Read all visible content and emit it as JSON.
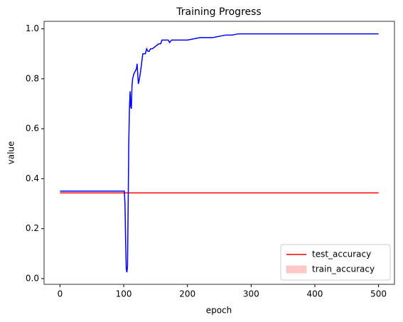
{
  "chart_data": {
    "type": "line",
    "title": "Training Progress",
    "xlabel": "epoch",
    "ylabel": "value",
    "xlim": [
      -25,
      525
    ],
    "xticks": [
      0,
      100,
      200,
      300,
      400,
      500
    ],
    "ylim": [
      -0.023,
      1.03
    ],
    "yticks": [
      {
        "value": 0,
        "label": "0.0"
      },
      {
        "value": 0.2,
        "label": "0.2"
      },
      {
        "value": 0.4,
        "label": "0.4"
      },
      {
        "value": 0.6,
        "label": "0.6"
      },
      {
        "value": 0.8,
        "label": "0.8"
      },
      {
        "value": 1,
        "label": "1.0"
      }
    ],
    "grid": false,
    "legend_loc": "lower right",
    "series": [
      {
        "color": "#ff0000",
        "x": [
          0,
          500
        ],
        "values": [
          0.343,
          0.343
        ]
      },
      {
        "color": "#0000ff",
        "x": [
          0,
          99,
          101,
          102,
          103,
          104,
          105,
          106,
          107,
          108,
          109,
          110,
          111,
          112,
          113,
          114,
          116,
          118,
          120,
          121,
          122,
          123,
          124,
          126,
          128,
          130,
          132,
          134,
          136,
          138,
          140,
          142,
          145,
          150,
          155,
          158,
          160,
          165,
          170,
          172,
          175,
          180,
          200,
          220,
          240,
          260,
          270,
          280,
          300,
          500
        ],
        "values": [
          0.35,
          0.35,
          0.35,
          0.3,
          0.15,
          0.04,
          0.025,
          0.05,
          0.3,
          0.55,
          0.68,
          0.75,
          0.69,
          0.68,
          0.77,
          0.8,
          0.82,
          0.83,
          0.84,
          0.86,
          0.82,
          0.78,
          0.79,
          0.82,
          0.86,
          0.9,
          0.9,
          0.9,
          0.92,
          0.91,
          0.91,
          0.92,
          0.92,
          0.93,
          0.94,
          0.94,
          0.955,
          0.955,
          0.955,
          0.945,
          0.955,
          0.955,
          0.955,
          0.965,
          0.965,
          0.975,
          0.975,
          0.98,
          0.98,
          0.98
        ]
      }
    ],
    "legend": [
      {
        "name": "test_accuracy",
        "color": "#ff0000",
        "style": "line"
      },
      {
        "name": "train_accuracy",
        "color": "#ffc8c8",
        "style": "patch"
      }
    ]
  }
}
